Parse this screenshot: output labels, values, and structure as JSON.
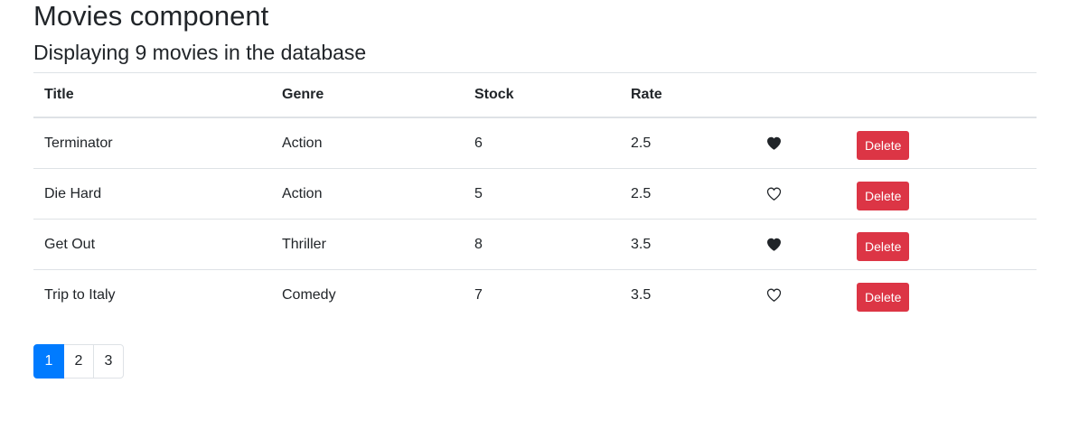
{
  "page": {
    "title": "Movies component",
    "subtitle": "Displaying 9 movies in the database"
  },
  "table": {
    "columns": [
      "Title",
      "Genre",
      "Stock",
      "Rate",
      "",
      ""
    ],
    "rows": [
      {
        "title": "Terminator",
        "genre": "Action",
        "stock": "6",
        "rate": "2.5",
        "liked": true,
        "delete_label": "Delete"
      },
      {
        "title": "Die Hard",
        "genre": "Action",
        "stock": "5",
        "rate": "2.5",
        "liked": false,
        "delete_label": "Delete"
      },
      {
        "title": "Get Out",
        "genre": "Thriller",
        "stock": "8",
        "rate": "3.5",
        "liked": true,
        "delete_label": "Delete"
      },
      {
        "title": "Trip to Italy",
        "genre": "Comedy",
        "stock": "7",
        "rate": "3.5",
        "liked": false,
        "delete_label": "Delete"
      }
    ]
  },
  "pagination": {
    "pages": [
      "1",
      "2",
      "3"
    ],
    "current_page": "1"
  },
  "colors": {
    "delete": "#dc3545",
    "active_page": "#007bff",
    "heart": "#212529"
  },
  "icons": {
    "liked": "heart-filled-icon",
    "not_liked": "heart-outline-icon"
  }
}
